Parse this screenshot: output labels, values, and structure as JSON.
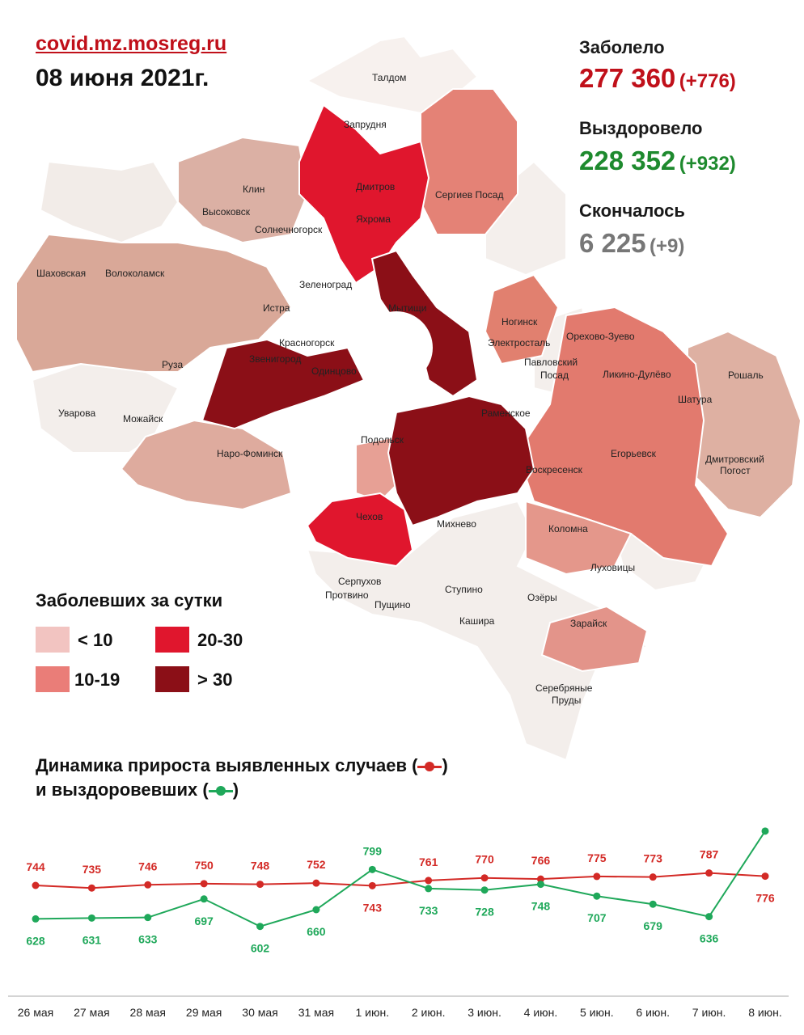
{
  "header": {
    "site": "covid.mz.mosreg.ru",
    "date": "08 июня 2021г."
  },
  "stats": {
    "infected": {
      "label": "Заболело",
      "value": "277 360",
      "delta": "(+776)",
      "color": "#c0101a"
    },
    "recovered": {
      "label": "Выздоровело",
      "value": "228 352",
      "delta": "(+932)",
      "color": "#1e8a2e"
    },
    "deaths": {
      "label": "Скончалось",
      "value": "6 225",
      "delta": "(+9)",
      "color": "#777777"
    }
  },
  "legend": {
    "title": "Заболевших за сутки",
    "items": [
      {
        "label": "< 10",
        "color": "#f2c4c1"
      },
      {
        "label": "10-19",
        "color": "#ea7d78"
      },
      {
        "label": "20-30",
        "color": "#e0162d"
      },
      {
        "label": "> 30",
        "color": "#8b0f17"
      }
    ]
  },
  "map": {
    "places": [
      "Талдом",
      "Запрудня",
      "Дмитров",
      "Яхрома",
      "Сергиев Посад",
      "Клин",
      "Высоковск",
      "Солнечногорск",
      "Шаховская",
      "Волоколамск",
      "Зеленоград",
      "Истра",
      "Мытищи",
      "Красногорск",
      "Звенигород",
      "Одинцово",
      "Ногинск",
      "Электросталь",
      "Павловский Посад",
      "Орехово-Зуево",
      "Ликино-Дулёво",
      "Рошаль",
      "Шатура",
      "Руза",
      "Уварова",
      "Можайск",
      "Раменское",
      "Наро-Фоминск",
      "Подольск",
      "Егорьевск",
      "Воскресенск",
      "Дмитровский Погост",
      "Чехов",
      "Михнево",
      "Коломна",
      "Луховицы",
      "Серпухов",
      "Пущино",
      "Протвино",
      "Ступино",
      "Озёры",
      "Кашира",
      "Зарайск",
      "Серебряные Пруды"
    ]
  },
  "dynamics": {
    "title_line1": "Динамика прироста выявленных случаев (",
    "title_line2": "и выздоровевших (",
    "close": ")"
  },
  "chart_data": {
    "type": "line",
    "categories": [
      "26 мая",
      "27 мая",
      "28 мая",
      "29 мая",
      "30 мая",
      "31 мая",
      "1 июн.",
      "2 июн.",
      "3 июн.",
      "4 июн.",
      "5 июн.",
      "6 июн.",
      "7 июн.",
      "8 июн."
    ],
    "series": [
      {
        "key": "infected",
        "color": "#d32a26",
        "values": [
          744,
          735,
          746,
          750,
          748,
          752,
          743,
          761,
          770,
          766,
          775,
          773,
          787,
          776
        ]
      },
      {
        "key": "recovered",
        "color": "#1fa85a",
        "values": [
          628,
          631,
          633,
          697,
          602,
          660,
          799,
          733,
          728,
          748,
          707,
          679,
          636,
          932
        ]
      }
    ],
    "grid": false,
    "legend": "inline-title"
  }
}
